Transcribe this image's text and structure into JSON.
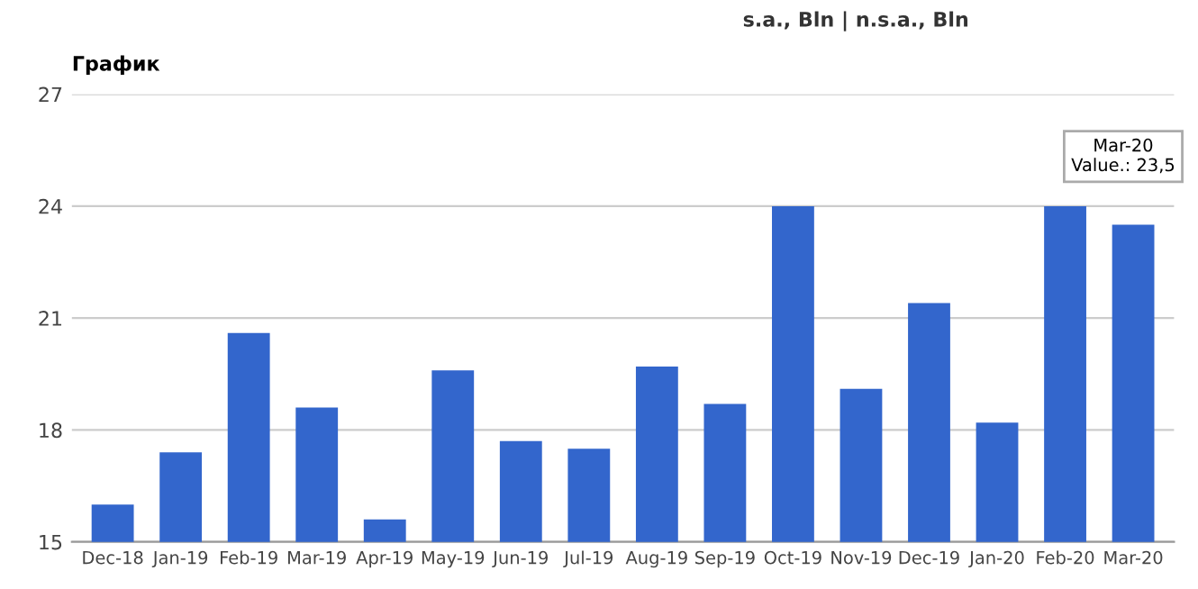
{
  "chart_data": {
    "type": "bar",
    "title": "График",
    "subtitle": "s.a., Bln | n.s.a., Bln",
    "categories": [
      "Dec-18",
      "Jan-19",
      "Feb-19",
      "Mar-19",
      "Apr-19",
      "May-19",
      "Jun-19",
      "Jul-19",
      "Aug-19",
      "Sep-19",
      "Oct-19",
      "Nov-19",
      "Dec-19",
      "Jan-20",
      "Feb-20",
      "Mar-20"
    ],
    "values": [
      16.0,
      17.4,
      20.6,
      18.6,
      15.6,
      19.6,
      17.7,
      17.5,
      19.7,
      18.7,
      24.0,
      19.1,
      21.4,
      18.2,
      24.0,
      23.5
    ],
    "color": "#3366cc",
    "ylim": [
      15,
      27
    ],
    "yticks": [
      15,
      18,
      21,
      24,
      27
    ],
    "grid": "y",
    "annotations": [
      {
        "text": "Mar-20\nValue.: 23,5",
        "x": "Mar-20",
        "y": 23.5
      }
    ]
  }
}
